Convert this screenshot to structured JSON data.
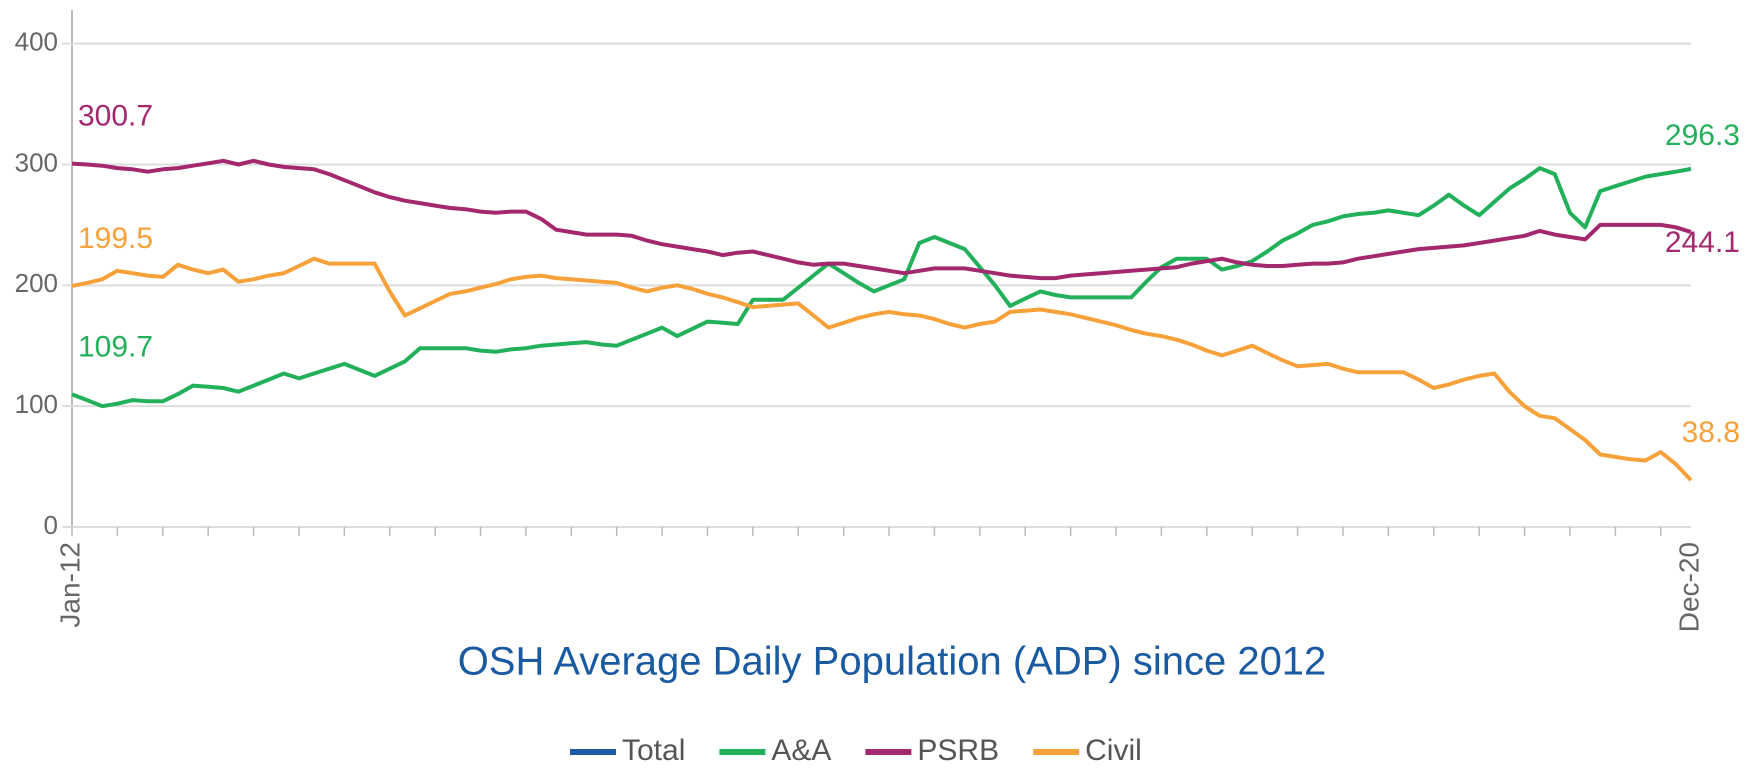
{
  "chart_data": {
    "type": "line",
    "title": "OSH Average Daily Population (ADP) since 2012",
    "categories": [
      "Jan-12",
      null,
      null,
      null,
      null,
      null,
      null,
      null,
      null,
      null,
      null,
      null,
      null,
      null,
      null,
      null,
      null,
      null,
      null,
      null,
      null,
      null,
      null,
      null,
      null,
      null,
      null,
      null,
      null,
      null,
      null,
      null,
      null,
      null,
      null,
      null,
      null,
      null,
      null,
      null,
      null,
      null,
      null,
      null,
      null,
      null,
      null,
      null,
      null,
      null,
      null,
      null,
      null,
      null,
      null,
      null,
      null,
      null,
      null,
      null,
      null,
      null,
      null,
      null,
      null,
      null,
      null,
      null,
      null,
      null,
      null,
      null,
      null,
      null,
      null,
      null,
      null,
      null,
      null,
      null,
      null,
      null,
      null,
      null,
      null,
      null,
      null,
      null,
      null,
      null,
      null,
      null,
      null,
      null,
      null,
      null,
      null,
      null,
      null,
      null,
      null,
      null,
      null,
      null,
      null,
      null,
      null,
      "Dec-20"
    ],
    "ylim": [
      0,
      427
    ],
    "yticks": [
      0,
      100,
      200,
      300,
      400
    ],
    "grid": true,
    "series": [
      {
        "name": "Total",
        "color": "#1f5aa6",
        "values": [
          null,
          null,
          null,
          null,
          null,
          null,
          null,
          null,
          null,
          null,
          null,
          null,
          null,
          null,
          null,
          null,
          null,
          null,
          null,
          null,
          null,
          null,
          null,
          null,
          null,
          null,
          null,
          null,
          null,
          null,
          null,
          null,
          null,
          null,
          null,
          null,
          null,
          null,
          null,
          null,
          null,
          null,
          null,
          null,
          null,
          null,
          null,
          null,
          null,
          null,
          null,
          null,
          null,
          null,
          null,
          null,
          null,
          null,
          null,
          null,
          null,
          null,
          null,
          null,
          null,
          null,
          null,
          null,
          null,
          null,
          null,
          null,
          null,
          null,
          null,
          null,
          null,
          null,
          null,
          null,
          null,
          null,
          null,
          null,
          null,
          null,
          null,
          null,
          null,
          null,
          null,
          null,
          null,
          null,
          null,
          null,
          null,
          null,
          null,
          null,
          null,
          null,
          null,
          null,
          null,
          null,
          null,
          null
        ]
      },
      {
        "name": "A&A",
        "color": "#22b05a",
        "values": [
          109.7,
          105,
          100,
          102,
          105,
          104,
          104,
          110,
          117,
          116,
          115,
          112,
          117,
          122,
          127,
          123,
          127,
          131,
          135,
          130,
          125,
          131,
          137,
          148,
          148,
          148,
          148,
          146,
          145,
          147,
          148,
          150,
          151,
          152,
          153,
          151,
          150,
          155,
          160,
          165,
          158,
          164,
          170,
          169,
          168,
          188,
          188,
          188,
          198,
          208,
          218,
          210,
          202,
          195,
          200,
          205,
          235,
          240,
          235,
          230,
          215,
          200,
          183,
          189,
          195,
          192,
          190,
          190,
          190,
          190,
          190,
          203,
          215,
          222,
          222,
          222,
          213,
          216,
          220,
          228,
          237,
          243,
          250,
          253,
          257,
          259,
          260,
          262,
          260,
          258,
          266,
          275,
          266,
          258,
          269,
          280,
          288,
          297,
          292,
          260,
          248,
          278,
          282,
          286,
          290,
          292,
          294,
          296.3
        ]
      },
      {
        "name": "PSRB",
        "color": "#a3286e",
        "values": [
          300.7,
          300,
          299,
          297,
          296,
          294,
          296,
          297,
          299,
          301,
          303,
          300,
          303,
          300,
          298,
          297,
          296,
          292,
          287,
          282,
          277,
          273,
          270,
          268,
          266,
          264,
          263,
          261,
          260,
          261,
          261,
          255,
          246,
          244,
          242,
          242,
          242,
          241,
          237,
          234,
          232,
          230,
          228,
          225,
          227,
          228,
          225,
          222,
          219,
          217,
          218,
          218,
          216,
          214,
          212,
          210,
          212,
          214,
          214,
          214,
          212,
          210,
          208,
          207,
          206,
          206,
          208,
          209,
          210,
          211,
          212,
          213,
          214,
          215,
          218,
          220,
          222,
          219,
          217,
          216,
          216,
          217,
          218,
          218,
          219,
          222,
          224,
          226,
          228,
          230,
          231,
          232,
          233,
          235,
          237,
          239,
          241,
          245,
          242,
          240,
          238,
          250,
          250,
          250,
          250,
          250,
          248,
          244.1
        ]
      },
      {
        "name": "Civil",
        "color": "#f7a13a",
        "values": [
          199.5,
          202,
          205,
          212,
          210,
          208,
          207,
          217,
          213,
          210,
          213,
          203,
          205,
          208,
          210,
          216,
          222,
          218,
          218,
          218,
          218,
          195,
          175,
          181,
          187,
          193,
          195,
          198,
          201,
          205,
          207,
          208,
          206,
          205,
          204,
          203,
          202,
          198,
          195,
          198,
          200,
          197,
          193,
          190,
          186,
          182,
          183,
          184,
          185,
          175,
          165,
          169,
          173,
          176,
          178,
          176,
          175,
          172,
          168,
          165,
          168,
          170,
          178,
          179,
          180,
          178,
          176,
          173,
          170,
          167,
          163,
          160,
          158,
          155,
          151,
          146,
          142,
          146,
          150,
          144,
          138,
          133,
          134,
          135,
          131,
          128,
          128,
          128,
          128,
          122,
          115,
          118,
          122,
          125,
          127,
          112,
          100,
          92,
          90,
          81,
          72,
          60,
          58,
          56,
          55,
          62,
          52,
          38.8
        ]
      }
    ]
  }
}
